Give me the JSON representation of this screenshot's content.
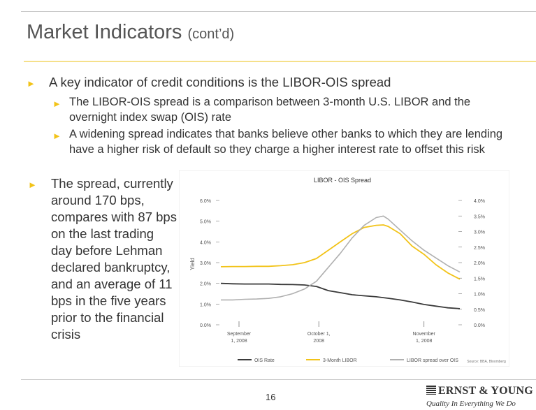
{
  "header": {
    "title": "Market Indicators",
    "title_suffix": "(cont’d)"
  },
  "bullets": {
    "main1": "A key indicator of credit conditions is the LIBOR-OIS spread",
    "sub1": "The LIBOR-OIS spread is a comparison between 3-month U.S. LIBOR and the overnight index swap (OIS) rate",
    "sub2": "A widening spread indicates that banks believe other banks to which they are lending  have a higher risk of default so they charge a higher interest rate to offset this risk",
    "main2": "The spread, currently around 170 bps, compares with 87 bps on the last trading day before Lehman declared bankruptcy, and an average of 11 bps in the five years prior to the financial crisis",
    "bullet_glyph": "►"
  },
  "chart_data": {
    "type": "line",
    "title": "LIBOR - OIS Spread",
    "ylabel": "Yield",
    "left_axis": {
      "ylim": [
        0,
        6
      ],
      "ticks": [
        "0.0%",
        "1.0%",
        "2.0%",
        "3.0%",
        "4.0%",
        "5.0%",
        "6.0%"
      ]
    },
    "right_axis": {
      "ylim": [
        0,
        4
      ],
      "ticks": [
        "0.0%",
        "0.5%",
        "1.0%",
        "1.5%",
        "2.0%",
        "2.5%",
        "3.0%",
        "3.5%",
        "4.0%"
      ]
    },
    "x_ticks": [
      {
        "label1": "September",
        "label2": "1, 2008",
        "pos": 0.0
      },
      {
        "label1": "October 1,",
        "label2": "2008",
        "pos": 0.41
      },
      {
        "label1": "November",
        "label2": "1, 2008",
        "pos": 0.85
      }
    ],
    "series": [
      {
        "name": "OIS Rate",
        "axis": "left",
        "color": "#3a3a3a",
        "x": [
          0,
          0.05,
          0.1,
          0.15,
          0.2,
          0.25,
          0.3,
          0.35,
          0.4,
          0.45,
          0.5,
          0.55,
          0.6,
          0.65,
          0.7,
          0.75,
          0.8,
          0.85,
          0.9,
          0.95,
          1.0
        ],
        "y": [
          2.0,
          1.98,
          1.97,
          1.97,
          1.97,
          1.95,
          1.94,
          1.92,
          1.85,
          1.65,
          1.55,
          1.45,
          1.4,
          1.35,
          1.28,
          1.2,
          1.1,
          0.98,
          0.9,
          0.82,
          0.78
        ]
      },
      {
        "name": "3-Month LIBOR",
        "axis": "left",
        "color": "#f2c318",
        "x": [
          0,
          0.05,
          0.1,
          0.15,
          0.2,
          0.25,
          0.3,
          0.35,
          0.4,
          0.45,
          0.5,
          0.55,
          0.6,
          0.65,
          0.68,
          0.7,
          0.75,
          0.8,
          0.85,
          0.9,
          0.95,
          1.0
        ],
        "y": [
          2.8,
          2.81,
          2.81,
          2.82,
          2.82,
          2.85,
          2.9,
          3.0,
          3.2,
          3.6,
          4.0,
          4.4,
          4.7,
          4.8,
          4.82,
          4.75,
          4.4,
          3.8,
          3.4,
          2.9,
          2.5,
          2.2
        ]
      },
      {
        "name": "LIBOR spread over OIS",
        "axis": "right",
        "color": "#b0b0b0",
        "x": [
          0,
          0.05,
          0.1,
          0.15,
          0.2,
          0.25,
          0.3,
          0.35,
          0.4,
          0.45,
          0.5,
          0.55,
          0.6,
          0.65,
          0.68,
          0.7,
          0.75,
          0.8,
          0.85,
          0.9,
          0.95,
          1.0
        ],
        "y": [
          0.8,
          0.8,
          0.82,
          0.83,
          0.85,
          0.9,
          1.0,
          1.15,
          1.4,
          1.85,
          2.3,
          2.8,
          3.2,
          3.45,
          3.5,
          3.4,
          3.05,
          2.7,
          2.4,
          2.15,
          1.9,
          1.7
        ]
      }
    ],
    "source": "Source: BBA, Bloomberg"
  },
  "footer": {
    "page_number": "16",
    "company": "ERNST & YOUNG",
    "tagline": "Quality In Everything We Do"
  }
}
